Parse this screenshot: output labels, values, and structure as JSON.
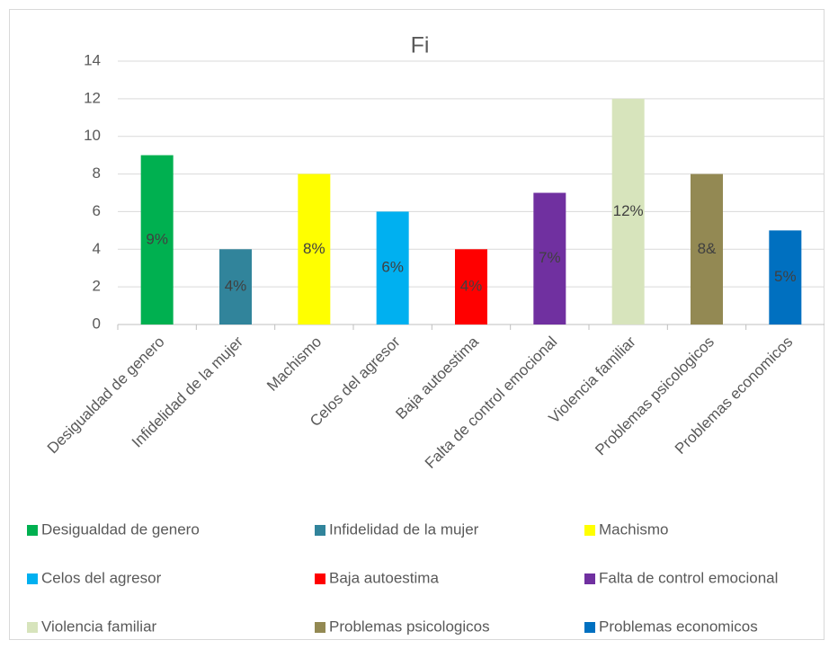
{
  "chart_data": {
    "type": "bar",
    "title": "Fi",
    "categories": [
      "Desigualdad de genero",
      "Infidelidad de la mujer",
      "Machismo",
      "Celos del agresor",
      "Baja autoestima",
      "Falta de control emocional",
      "Violencia familiar",
      "Problemas psicologicos",
      "Problemas economicos"
    ],
    "values": [
      9,
      4,
      8,
      6,
      4,
      7,
      12,
      8,
      5
    ],
    "value_labels": [
      "9%",
      "4%",
      "8%",
      "6%",
      "4%",
      "7%",
      "12%",
      "8&",
      "5%"
    ],
    "colors": [
      "#00b050",
      "#31849b",
      "#ffff00",
      "#00b0f0",
      "#ff0000",
      "#7030a0",
      "#d7e4bc",
      "#938953",
      "#0070c0"
    ],
    "ylim": [
      0,
      14
    ],
    "yticks": [
      0,
      2,
      4,
      6,
      8,
      10,
      12,
      14
    ],
    "grid": true,
    "legend": "bottom"
  }
}
